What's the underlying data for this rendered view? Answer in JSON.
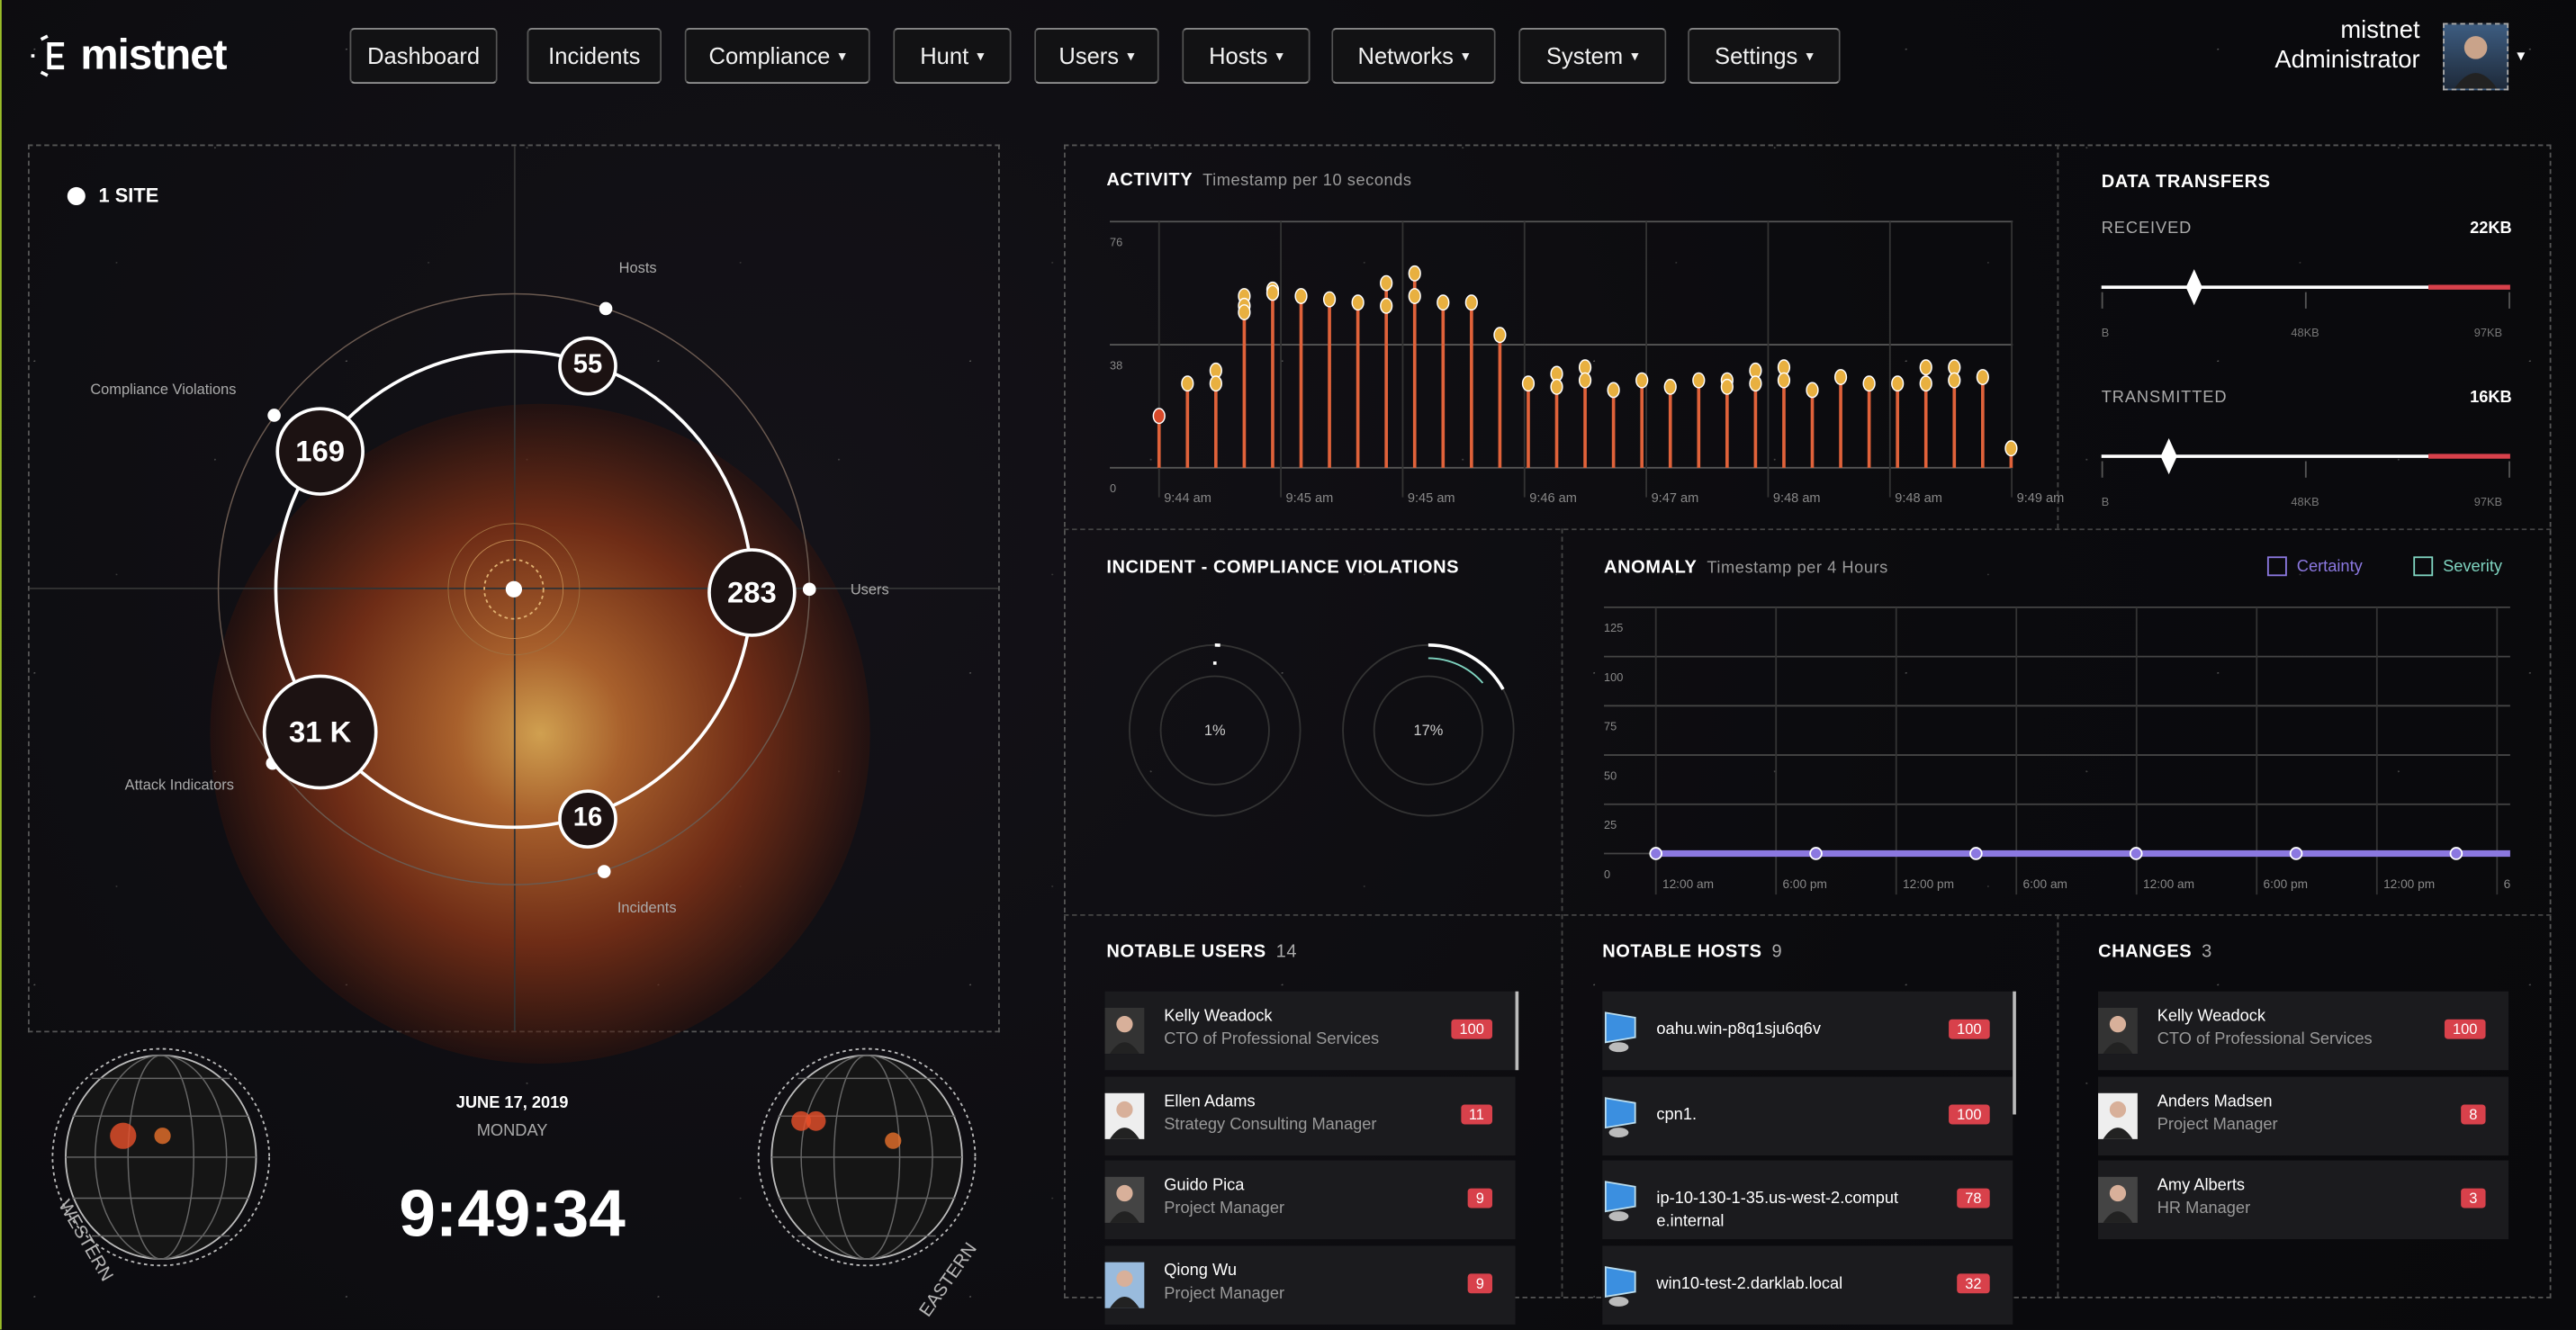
{
  "brand": {
    "name": "mistnet"
  },
  "nav": [
    {
      "label": "Dashboard",
      "dropdown": false
    },
    {
      "label": "Incidents",
      "dropdown": false
    },
    {
      "label": "Compliance",
      "dropdown": true
    },
    {
      "label": "Hunt",
      "dropdown": true
    },
    {
      "label": "Users",
      "dropdown": true
    },
    {
      "label": "Hosts",
      "dropdown": true
    },
    {
      "label": "Networks",
      "dropdown": true
    },
    {
      "label": "System",
      "dropdown": true
    },
    {
      "label": "Settings",
      "dropdown": true
    }
  ],
  "caret": "▾",
  "user": {
    "name": "mistnet",
    "role": "Administrator"
  },
  "site": {
    "label": "1 SITE"
  },
  "radial": {
    "nodes": [
      {
        "label": "Hosts",
        "value": "55"
      },
      {
        "label": "Compliance Violations",
        "value": "169"
      },
      {
        "label": "Users",
        "value": "283"
      },
      {
        "label": "Attack Indicators",
        "value": "31 K"
      },
      {
        "label": "Incidents",
        "value": "16"
      }
    ]
  },
  "clock": {
    "date": "JUNE 17, 2019",
    "day": "MONDAY",
    "time": "9:49:34",
    "western": "WESTERN",
    "eastern": "EASTERN"
  },
  "transfers": {
    "title": "DATA TRANSFERS",
    "received": {
      "label": "RECEIVED",
      "value": "22KB",
      "level_kb": 22,
      "max_kb": 97,
      "ticks": [
        "B",
        "48KB",
        "97KB"
      ]
    },
    "transmitted": {
      "label": "TRANSMITTED",
      "value": "16KB",
      "level_kb": 16,
      "max_kb": 97,
      "ticks": [
        "B",
        "48KB",
        "97KB"
      ]
    }
  },
  "incident": {
    "title": "INCIDENT - COMPLIANCE VIOLATIONS",
    "gauges": [
      {
        "label": "1%",
        "percent": 1
      },
      {
        "label": "17%",
        "percent": 17
      }
    ]
  },
  "notable_users": {
    "title": "NOTABLE USERS",
    "count": "14",
    "items": [
      {
        "name": "Kelly Weadock",
        "role": "CTO of Professional Services",
        "score": "100"
      },
      {
        "name": "Ellen Adams",
        "role": "Strategy Consulting Manager",
        "score": "11"
      },
      {
        "name": "Guido Pica",
        "role": "Project Manager",
        "score": "9"
      },
      {
        "name": "Qiong Wu",
        "role": "Project Manager",
        "score": "9"
      }
    ]
  },
  "notable_hosts": {
    "title": "NOTABLE HOSTS",
    "count": "9",
    "items": [
      {
        "name": "oahu.win-p8q1sju6q6v",
        "score": "100"
      },
      {
        "name": "cpn1.",
        "score": "100"
      },
      {
        "name": "ip-10-130-1-35.us-west-2.compute.internal",
        "score": "78"
      },
      {
        "name": "win10-test-2.darklab.local",
        "score": "32"
      }
    ]
  },
  "changes": {
    "title": "CHANGES",
    "count": "3",
    "items": [
      {
        "name": "Kelly Weadock",
        "role": "CTO of Professional Services",
        "score": "100"
      },
      {
        "name": "Anders Madsen",
        "role": "Project Manager",
        "score": "8"
      },
      {
        "name": "Amy Alberts",
        "role": "HR Manager",
        "score": "3"
      }
    ]
  },
  "colors": {
    "accent_red": "#d8414b",
    "stem": "#e0623a",
    "dot": "#e8b040",
    "certainty": "#8b78e0",
    "severity": "#7fd4c0"
  },
  "chart_data": [
    {
      "type": "bar",
      "title": "ACTIVITY",
      "subtitle": "Timestamp per 10 seconds",
      "ylim": [
        0,
        76
      ],
      "yticks": [
        "0",
        "38",
        "76"
      ],
      "xticks": [
        "9:44 am",
        "9:45 am",
        "9:45 am",
        "9:46 am",
        "9:47 am",
        "9:48 am",
        "9:48 am",
        "9:49 am"
      ],
      "grid": true,
      "values": [
        [
          16
        ],
        [
          26
        ],
        [
          30,
          26
        ],
        [
          53,
          50,
          48
        ],
        [
          55,
          54
        ],
        [
          53
        ],
        [
          52
        ],
        [
          51
        ],
        [
          57,
          50
        ],
        [
          60,
          53
        ],
        [
          51
        ],
        [
          51
        ],
        [
          41
        ],
        [
          26
        ],
        [
          29,
          25
        ],
        [
          31,
          27
        ],
        [
          24
        ],
        [
          27
        ],
        [
          25
        ],
        [
          27
        ],
        [
          27,
          25
        ],
        [
          30,
          26
        ],
        [
          31,
          27
        ],
        [
          24
        ],
        [
          28
        ],
        [
          26
        ],
        [
          26
        ],
        [
          31,
          26
        ],
        [
          31,
          27
        ],
        [
          28
        ],
        [
          6
        ]
      ]
    },
    {
      "type": "line",
      "title": "ANOMALY",
      "subtitle": "Timestamp per 4 Hours",
      "ylim": [
        0,
        125
      ],
      "yticks": [
        "0",
        "25",
        "50",
        "75",
        "100",
        "125"
      ],
      "xticks": [
        "12:00 am",
        "6:00 pm",
        "12:00 pm",
        "6:00 am",
        "12:00 am",
        "6:00 pm",
        "12:00 pm",
        "6"
      ],
      "legend": "top-right",
      "grid": true,
      "series": [
        {
          "name": "Certainty",
          "values": [
            0,
            0,
            0,
            0,
            0,
            0
          ]
        },
        {
          "name": "Severity",
          "values": []
        }
      ]
    }
  ]
}
